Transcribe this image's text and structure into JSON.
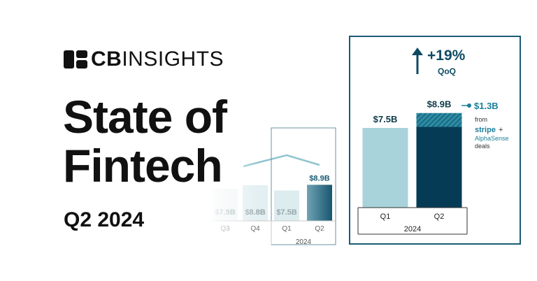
{
  "logo": {
    "part1": "CB",
    "part2": "INSIGHTS"
  },
  "title_line1": "State of",
  "title_line2": "Fintech",
  "subtitle": "Q2 2024",
  "colors": {
    "light_bar": "#a8d3db",
    "dark_bar": "#053b55",
    "accent": "#1a7f9a",
    "frame": "#1a5b73",
    "text": "#111111"
  },
  "chart_data": [
    {
      "type": "bar",
      "categories": [
        "Q3",
        "Q4",
        "Q1",
        "Q2"
      ],
      "values": [
        7.9,
        8.8,
        7.5,
        8.9
      ],
      "labels": [
        "$7.9B",
        "$8.8B",
        "$7.5B",
        "$8.9B"
      ],
      "year_label": "2024"
    },
    {
      "type": "bar",
      "categories": [
        "Q1",
        "Q2"
      ],
      "values": [
        7.5,
        8.9
      ],
      "labels": [
        "$7.5B",
        "$8.9B"
      ],
      "year_label": "2024",
      "highlight_segment": {
        "value": 1.3,
        "label": "$1.3B"
      },
      "change": {
        "value": "+19%",
        "period": "QoQ"
      },
      "annotation": {
        "from": "from",
        "company1": "stripe",
        "plus": "+",
        "company2": "AlphaSense",
        "deals": "deals"
      }
    }
  ]
}
